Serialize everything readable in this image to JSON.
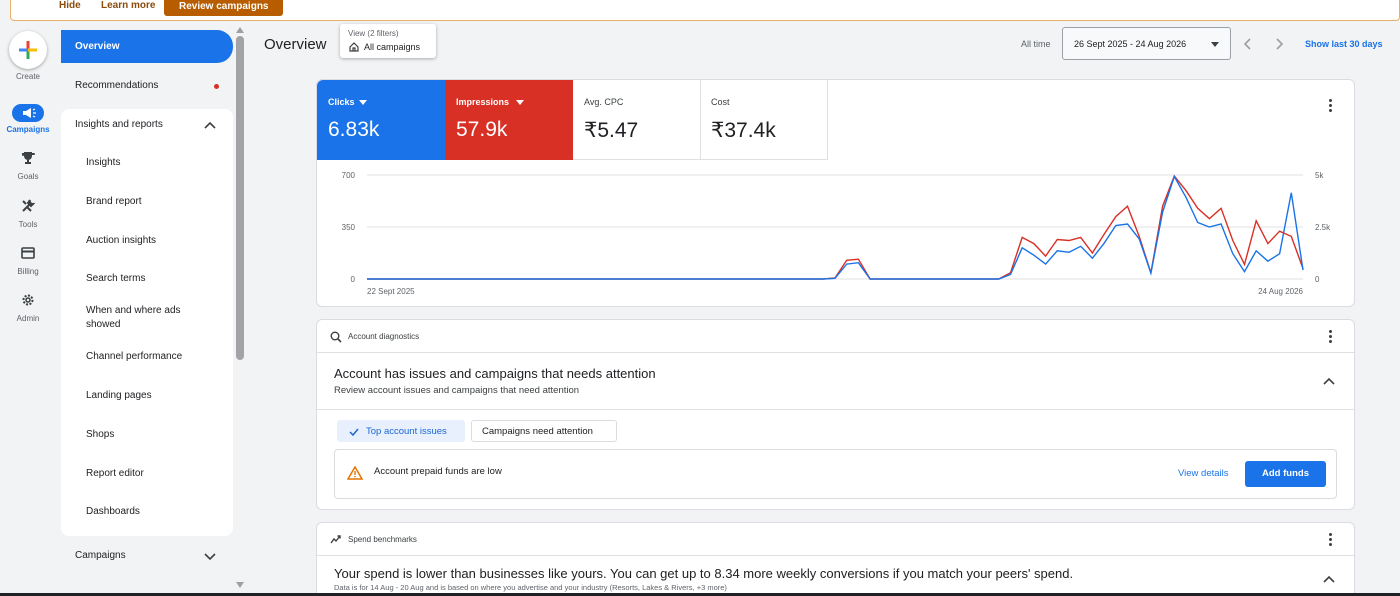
{
  "banner": {
    "hide": "Hide",
    "learn_more": "Learn more",
    "review": "Review campaigns"
  },
  "rail": {
    "create": "Create",
    "items": [
      {
        "label": "Campaigns",
        "icon": "megaphone-icon",
        "active": true
      },
      {
        "label": "Goals",
        "icon": "trophy-icon"
      },
      {
        "label": "Tools",
        "icon": "tools-icon"
      },
      {
        "label": "Billing",
        "icon": "card-icon"
      },
      {
        "label": "Admin",
        "icon": "gear-icon"
      }
    ]
  },
  "sidebar": {
    "overview": "Overview",
    "recommendations": "Recommendations",
    "insights_reports": "Insights and reports",
    "sub": [
      "Insights",
      "Brand report",
      "Auction insights",
      "Search terms",
      "When and where ads showed",
      "Channel performance",
      "Landing pages",
      "Shops",
      "Report editor",
      "Dashboards"
    ],
    "campaigns": "Campaigns"
  },
  "header": {
    "title": "Overview",
    "view_filters": "View (2 filters)",
    "view_value": "All campaigns",
    "all_time": "All time",
    "date_range": "26 Sept 2025 - 24 Aug 2026",
    "show_last": "Show last 30 days"
  },
  "kpis": {
    "clicks": {
      "label": "Clicks",
      "value": "6.83k",
      "color": "#1a73e8"
    },
    "impressions": {
      "label": "Impressions",
      "value": "57.9k",
      "color": "#d93025"
    },
    "cpc": {
      "label": "Avg. CPC",
      "value": "₹5.47"
    },
    "cost": {
      "label": "Cost",
      "value": "₹37.4k"
    }
  },
  "chart_data": {
    "type": "line",
    "x_start_label": "22 Sept 2025",
    "x_end_label": "24 Aug 2026",
    "y_left_ticks": [
      "0",
      "350",
      "700"
    ],
    "y_right_ticks": [
      "0",
      "2.5k",
      "5k"
    ],
    "ylim_left": [
      0,
      700
    ],
    "ylim_right": [
      0,
      5000
    ],
    "series": [
      {
        "name": "Clicks",
        "color": "#1a73e8",
        "axis": "left",
        "values": [
          0,
          0,
          0,
          0,
          0,
          0,
          0,
          0,
          0,
          0,
          0,
          0,
          0,
          0,
          0,
          0,
          0,
          0,
          0,
          0,
          0,
          0,
          0,
          0,
          0,
          0,
          0,
          0,
          0,
          0,
          0,
          0,
          0,
          0,
          0,
          0,
          0,
          0,
          0,
          0,
          5,
          100,
          110,
          0,
          0,
          0,
          0,
          0,
          0,
          0,
          0,
          0,
          0,
          0,
          0,
          30,
          210,
          160,
          100,
          190,
          180,
          220,
          140,
          240,
          360,
          370,
          270,
          40,
          450,
          690,
          550,
          380,
          350,
          370,
          170,
          50,
          190,
          120,
          170,
          580,
          60
        ]
      },
      {
        "name": "Impressions",
        "color": "#d93025",
        "axis": "right",
        "values": [
          0,
          0,
          0,
          0,
          0,
          0,
          0,
          0,
          0,
          0,
          0,
          0,
          0,
          0,
          0,
          0,
          0,
          0,
          0,
          0,
          0,
          0,
          0,
          0,
          0,
          0,
          0,
          0,
          0,
          0,
          0,
          0,
          0,
          0,
          0,
          0,
          0,
          0,
          0,
          0,
          50,
          900,
          950,
          0,
          0,
          0,
          0,
          0,
          0,
          0,
          0,
          0,
          0,
          0,
          0,
          300,
          2000,
          1700,
          1100,
          1900,
          1850,
          2000,
          1250,
          2150,
          3000,
          3500,
          2050,
          300,
          3500,
          4950,
          4250,
          3400,
          2900,
          3400,
          1850,
          700,
          2800,
          1700,
          2300,
          2050,
          500
        ]
      }
    ]
  },
  "diagnostics": {
    "section": "Account diagnostics",
    "title": "Account has issues and campaigns that needs attention",
    "subtitle": "Review account issues and campaigns that need attention",
    "chip_top": "Top account issues",
    "chip_campaigns": "Campaigns need attention",
    "alert": "Account prepaid funds are low",
    "view_details": "View details",
    "add_funds": "Add funds"
  },
  "benchmarks": {
    "section": "Spend benchmarks",
    "title": "Your spend is lower than businesses like yours. You can get up to 8.34 more weekly conversions if you match your peers' spend.",
    "note": "Data is for 14 Aug - 20 Aug and is based on where you advertise and your industry (Resorts, Lakes & Rivers, +3 more)"
  }
}
